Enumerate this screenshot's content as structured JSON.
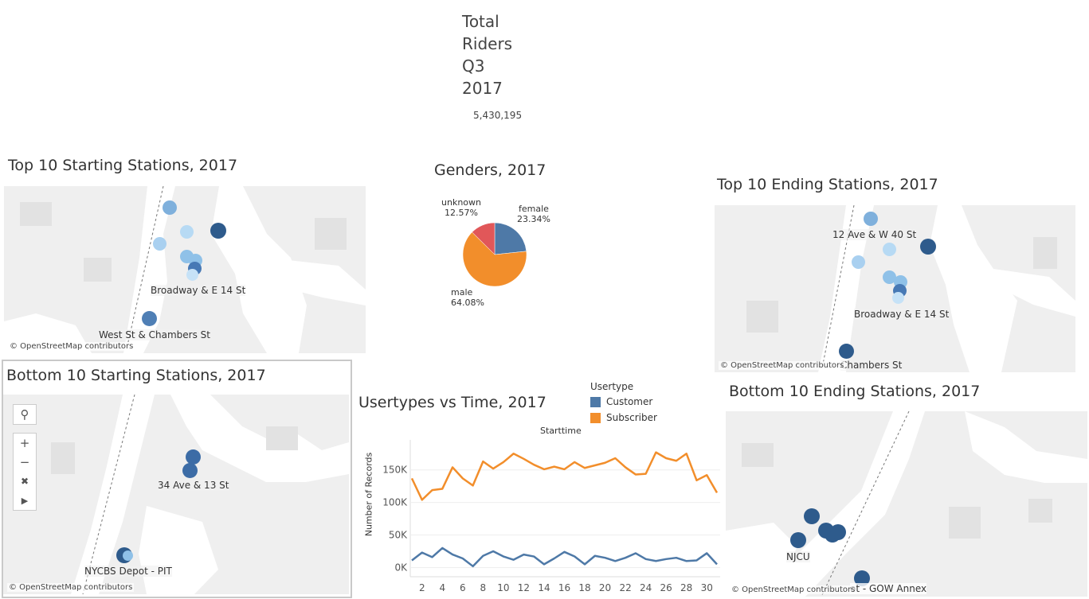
{
  "kpi": {
    "title_lines": [
      "Total",
      "Riders",
      "Q3",
      "2017"
    ],
    "value": "5,430,195"
  },
  "top_start": {
    "title": "Top 10 Starting Stations, 2017",
    "labels": [
      "Broadway & E 14 St",
      "West St & Chambers St"
    ],
    "credit": "© OpenStreetMap contributors"
  },
  "bottom_start": {
    "title": "Bottom 10 Starting Stations, 2017",
    "labels": [
      "34 Ave & 13 St",
      "NYCBS Depot - PIT"
    ],
    "credit": "© OpenStreetMap contributors"
  },
  "top_end": {
    "title": "Top 10 Ending Stations, 2017",
    "labels": [
      "12 Ave & W 40 St",
      "Broadway & E 14 St",
      "Chambers St"
    ],
    "credit": "© OpenStreetMap contributors"
  },
  "bottom_end": {
    "title": "Bottom 10 Ending Stations, 2017",
    "labels": [
      "NJCU",
      "ot - GOW Annex"
    ],
    "credit": "© OpenStreetMap contributors"
  },
  "colors": {
    "customer": "#4e79a7",
    "subscriber": "#f28e2b",
    "unknown": "#e15759",
    "dark_dot": "#2e5b8c",
    "light_dot": "#8fc1e8",
    "mid_dot": "#5f93c4"
  },
  "chart_data": [
    {
      "type": "pie",
      "title": "Genders, 2017",
      "slices": [
        {
          "name": "female",
          "value": 23.34,
          "label": "23.34%"
        },
        {
          "name": "male",
          "value": 64.08,
          "label": "64.08%"
        },
        {
          "name": "unknown",
          "value": 12.57,
          "label": "12.57%"
        }
      ]
    },
    {
      "type": "line",
      "title": "Usertypes vs Time, 2017",
      "xlabel": "Starttime",
      "ylabel": "Number of Records",
      "legend_title": "Usertype",
      "legend_position": "top-right",
      "x": [
        1,
        2,
        3,
        4,
        5,
        6,
        7,
        8,
        9,
        10,
        11,
        12,
        13,
        14,
        15,
        16,
        17,
        18,
        19,
        20,
        21,
        22,
        23,
        24,
        25,
        26,
        27,
        28,
        29,
        30,
        31
      ],
      "x_ticks": [
        2,
        4,
        6,
        8,
        10,
        12,
        14,
        16,
        18,
        20,
        22,
        24,
        26,
        28,
        30
      ],
      "y_ticks": [
        {
          "value": 0,
          "label": "0K"
        },
        {
          "value": 50000,
          "label": "50K"
        },
        {
          "value": 100000,
          "label": "100K"
        },
        {
          "value": 150000,
          "label": "150K"
        }
      ],
      "ylim": [
        -8000,
        190000
      ],
      "series": [
        {
          "name": "Customer",
          "values": [
            11000,
            23000,
            16000,
            30000,
            20000,
            14000,
            2000,
            18000,
            25000,
            17000,
            12000,
            20000,
            17000,
            5000,
            14000,
            24000,
            17000,
            5000,
            18000,
            15000,
            10000,
            15000,
            22000,
            13000,
            10000,
            13000,
            15000,
            10000,
            11000,
            22000,
            5000
          ]
        },
        {
          "name": "Subscriber",
          "values": [
            137000,
            104000,
            119000,
            121000,
            154000,
            137000,
            126000,
            163000,
            152000,
            162000,
            175000,
            167000,
            158000,
            151000,
            155000,
            151000,
            162000,
            153000,
            157000,
            161000,
            168000,
            154000,
            143000,
            144000,
            177000,
            168000,
            164000,
            175000,
            134000,
            142000,
            115000
          ]
        }
      ]
    }
  ]
}
